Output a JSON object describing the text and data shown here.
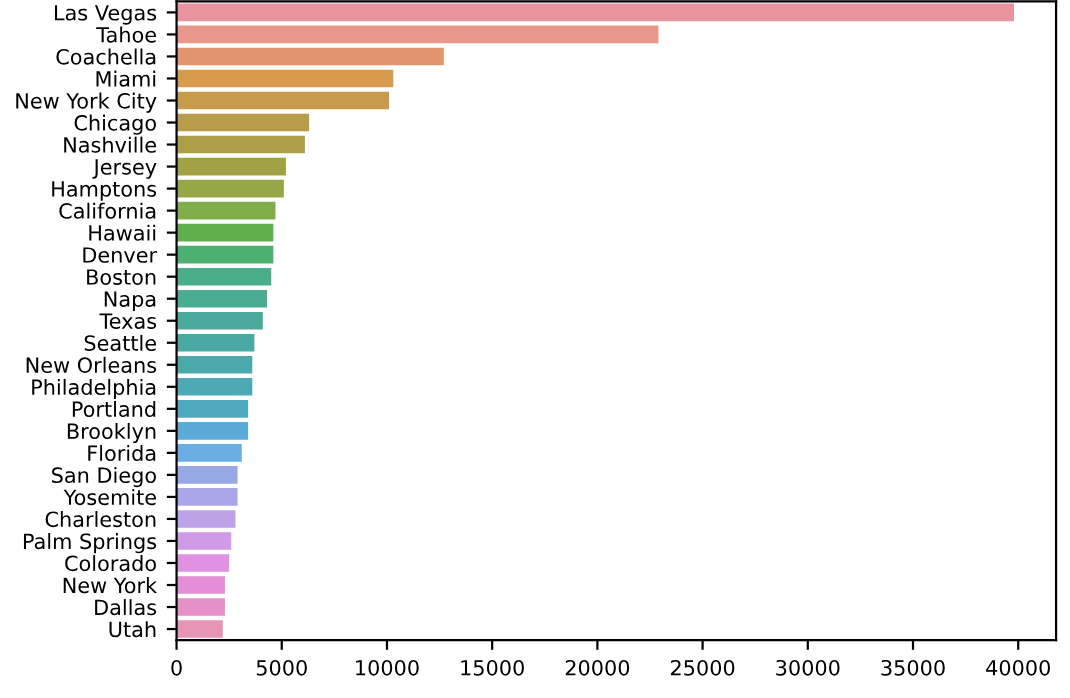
{
  "chart_data": {
    "type": "bar",
    "orientation": "horizontal",
    "categories": [
      "Las Vegas",
      "Tahoe",
      "Coachella",
      "Miami",
      "New York City",
      "Chicago",
      "Nashville",
      "Jersey",
      "Hamptons",
      "California",
      "Hawaii",
      "Denver",
      "Boston",
      "Napa",
      "Texas",
      "Seattle",
      "New Orleans",
      "Philadelphia",
      "Portland",
      "Brooklyn",
      "Florida",
      "San Diego",
      "Yosemite",
      "Charleston",
      "Palm Springs",
      "Colorado",
      "New York",
      "Dallas",
      "Utah"
    ],
    "values": [
      39800,
      22900,
      12700,
      10300,
      10100,
      6300,
      6100,
      5200,
      5100,
      4700,
      4600,
      4600,
      4500,
      4300,
      4100,
      3700,
      3600,
      3600,
      3400,
      3400,
      3100,
      2900,
      2900,
      2800,
      2600,
      2500,
      2300,
      2300,
      2200
    ],
    "colors": [
      "#e8939e",
      "#e8978a",
      "#e2956d",
      "#d89a4c",
      "#c89b4c",
      "#b89c4b",
      "#ad9e48",
      "#a1a245",
      "#95a747",
      "#80ae4b",
      "#5fb04c",
      "#4cb170",
      "#4aae8a",
      "#4aac93",
      "#4aab9c",
      "#4aaaa3",
      "#4ba9aa",
      "#4da9b4",
      "#50aabf",
      "#5aabd5",
      "#6aaee3",
      "#97a9e5",
      "#aba6e8",
      "#bda2e8",
      "#cf9ae6",
      "#df92e2",
      "#e38ed6",
      "#e690c8",
      "#e695b5"
    ],
    "xlim": [
      0,
      41800
    ],
    "xticks": [
      0,
      5000,
      10000,
      15000,
      20000,
      25000,
      30000,
      35000,
      40000
    ],
    "grid": false,
    "legend": false
  }
}
